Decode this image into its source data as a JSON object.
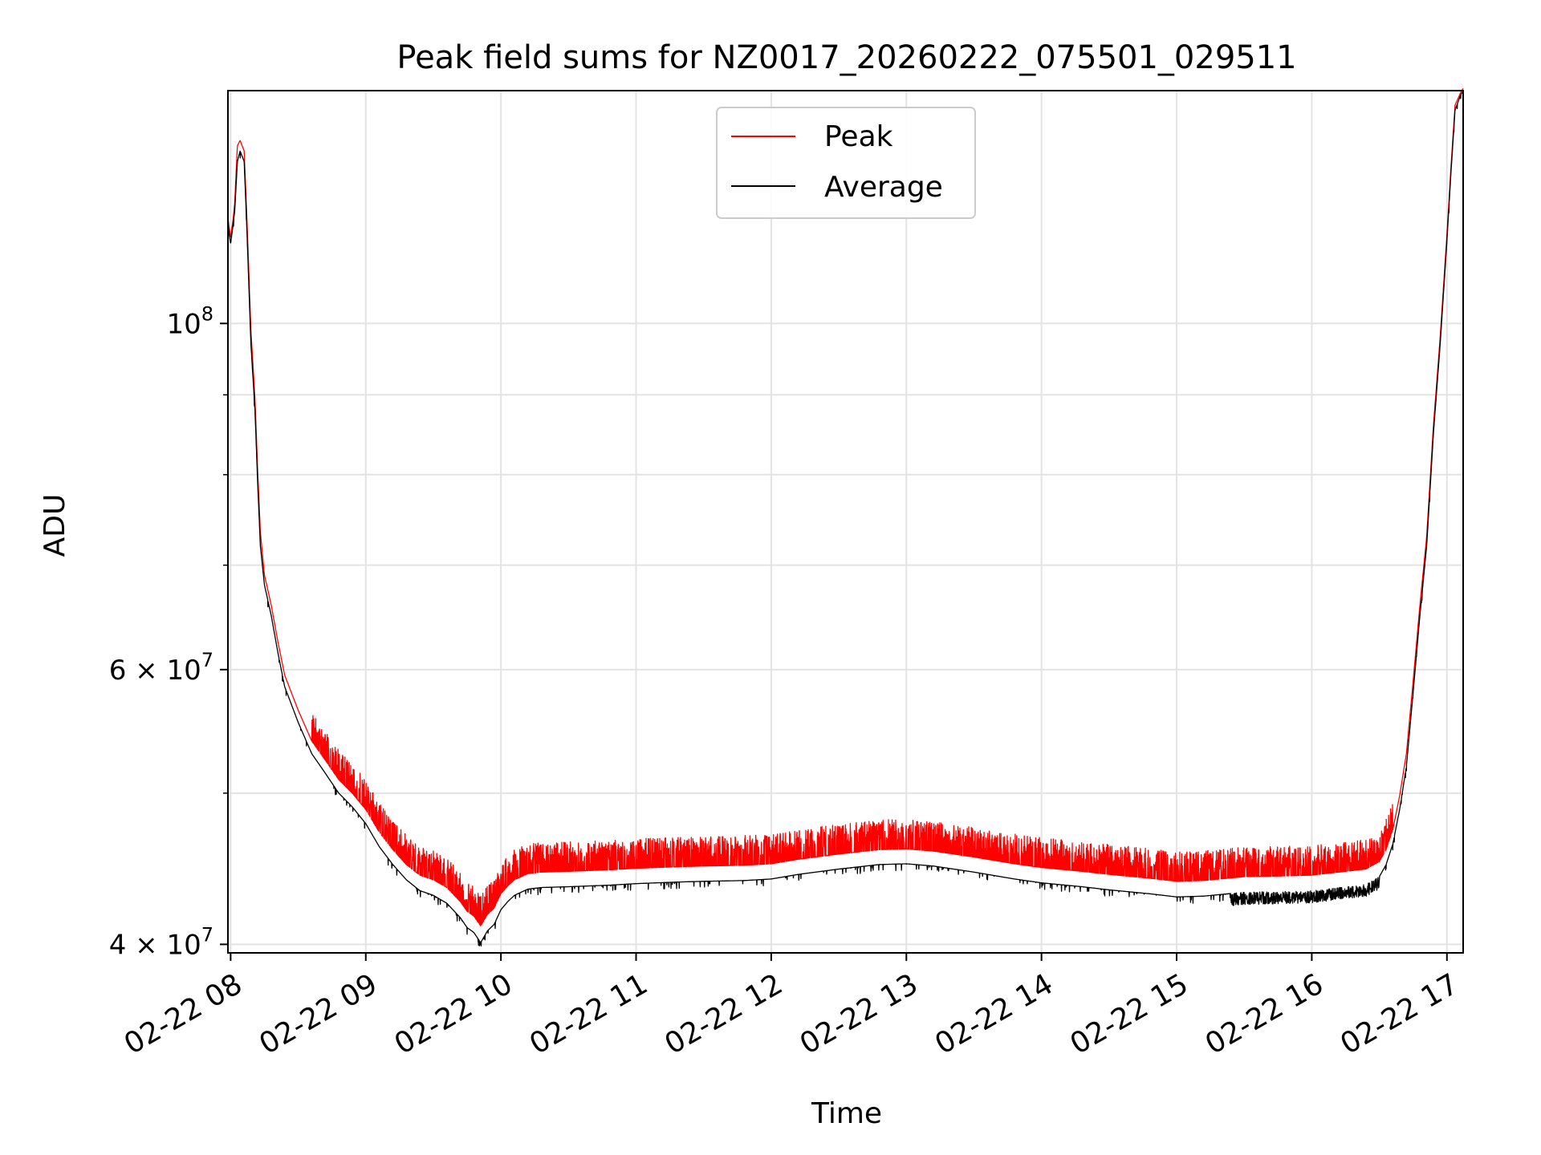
{
  "chart_data": {
    "type": "line",
    "title": "Peak field sums for NZ0017_20260222_075501_029511",
    "xlabel": "Time",
    "ylabel": "ADU",
    "yscale": "log",
    "xlim_hours": [
      7.98,
      17.12
    ],
    "ylim": [
      39500000,
      141000000
    ],
    "grid": true,
    "x_ticks": [
      {
        "hour": 8,
        "label": "02-22 08"
      },
      {
        "hour": 9,
        "label": "02-22 09"
      },
      {
        "hour": 10,
        "label": "02-22 10"
      },
      {
        "hour": 11,
        "label": "02-22 11"
      },
      {
        "hour": 12,
        "label": "02-22 12"
      },
      {
        "hour": 13,
        "label": "02-22 13"
      },
      {
        "hour": 14,
        "label": "02-22 14"
      },
      {
        "hour": 15,
        "label": "02-22 15"
      },
      {
        "hour": 16,
        "label": "02-22 16"
      },
      {
        "hour": 17,
        "label": "02-22 17"
      }
    ],
    "y_major_ticks": [
      {
        "value": 100000000,
        "mantissa": "",
        "base": "10",
        "exp": "8"
      },
      {
        "value": 60000000,
        "mantissa": "6",
        "base": "10",
        "exp": "7"
      },
      {
        "value": 40000000,
        "mantissa": "4",
        "base": "10",
        "exp": "7"
      }
    ],
    "y_minor_ticks": [
      50000000,
      70000000,
      80000000,
      90000000
    ],
    "legend": {
      "position": "top-center",
      "entries": [
        "Peak",
        "Average"
      ]
    },
    "series": [
      {
        "name": "Average",
        "color": "#000000",
        "x_hours": [
          7.98,
          7.99,
          8.0,
          8.02,
          8.03,
          8.05,
          8.07,
          8.1,
          8.12,
          8.15,
          8.18,
          8.2,
          8.22,
          8.25,
          8.3,
          8.35,
          8.4,
          8.5,
          8.6,
          8.7,
          8.8,
          8.9,
          9.0,
          9.1,
          9.2,
          9.3,
          9.4,
          9.5,
          9.6,
          9.7,
          9.75,
          9.8,
          9.85,
          9.9,
          9.95,
          10.0,
          10.05,
          10.1,
          10.2,
          10.3,
          10.5,
          10.8,
          11.0,
          11.3,
          11.5,
          11.8,
          12.0,
          12.2,
          12.5,
          12.8,
          13.0,
          13.2,
          13.5,
          13.8,
          14.0,
          14.3,
          14.5,
          14.8,
          15.0,
          15.2,
          15.5,
          15.8,
          16.0,
          16.2,
          16.4,
          16.5,
          16.55,
          16.6,
          16.65,
          16.7,
          16.75,
          16.8,
          16.85,
          16.9,
          16.95,
          17.0,
          17.03,
          17.06,
          17.1,
          17.12
        ],
        "y": [
          116000000,
          114000000,
          112500000,
          116000000,
          118000000,
          127000000,
          129000000,
          127000000,
          115000000,
          97000000,
          88000000,
          79000000,
          72000000,
          68000000,
          65000000,
          61500000,
          58500000,
          55500000,
          53000000,
          51500000,
          50000000,
          49000000,
          47800000,
          46200000,
          45000000,
          44000000,
          43300000,
          43000000,
          42500000,
          41600000,
          41000000,
          40700000,
          40100000,
          40800000,
          41200000,
          42100000,
          42600000,
          43000000,
          43400000,
          43500000,
          43550000,
          43650000,
          43750000,
          43850000,
          43900000,
          43950000,
          44050000,
          44350000,
          44700000,
          45000000,
          45050000,
          44900000,
          44500000,
          44050000,
          43800000,
          43550000,
          43350000,
          43100000,
          42900000,
          42950000,
          43200000,
          43250000,
          43300000,
          43500000,
          43700000,
          44200000,
          45000000,
          46400000,
          48800000,
          52000000,
          58000000,
          65000000,
          72000000,
          85000000,
          97000000,
          113000000,
          125000000,
          137000000,
          140000000,
          141000000
        ]
      },
      {
        "name": "Peak",
        "color": "#ff0000",
        "x_hours": [
          7.98,
          7.99,
          8.0,
          8.02,
          8.03,
          8.05,
          8.07,
          8.1,
          8.12,
          8.15,
          8.18,
          8.2,
          8.22,
          8.25,
          8.3,
          8.35,
          8.4,
          8.5,
          8.6,
          8.7,
          8.8,
          8.9,
          9.0,
          9.1,
          9.2,
          9.3,
          9.4,
          9.5,
          9.6,
          9.7,
          9.75,
          9.8,
          9.85,
          9.9,
          9.95,
          10.0,
          10.05,
          10.1,
          10.2,
          10.3,
          10.5,
          10.8,
          11.0,
          11.3,
          11.5,
          11.8,
          12.0,
          12.2,
          12.5,
          12.8,
          13.0,
          13.2,
          13.5,
          13.8,
          14.0,
          14.3,
          14.5,
          14.8,
          15.0,
          15.2,
          15.5,
          15.8,
          16.0,
          16.2,
          16.4,
          16.5,
          16.55,
          16.6,
          16.65,
          16.7,
          16.75,
          16.8,
          16.85,
          16.9,
          16.95,
          17.0,
          17.03,
          17.06,
          17.1,
          17.12
        ],
        "y": [
          117000000,
          115000000,
          113500000,
          117000000,
          119500000,
          130000000,
          131000000,
          129000000,
          117000000,
          99000000,
          89500000,
          80500000,
          73500000,
          69000000,
          66000000,
          62500000,
          59500000,
          56500000,
          54000000,
          52500000,
          51000000,
          50000000,
          48800000,
          47200000,
          46000000,
          45000000,
          44300000,
          44000000,
          43500000,
          42600000,
          42000000,
          41700000,
          41100000,
          41800000,
          42200000,
          43100000,
          43600000,
          44000000,
          44400000,
          44500000,
          44550000,
          44650000,
          44750000,
          44850000,
          44900000,
          44950000,
          45050000,
          45350000,
          45700000,
          46000000,
          46050000,
          45900000,
          45500000,
          45050000,
          44800000,
          44550000,
          44350000,
          44100000,
          43900000,
          43950000,
          44200000,
          44250000,
          44300000,
          44500000,
          44700000,
          45200000,
          46000000,
          47400000,
          49800000,
          53000000,
          59000000,
          66000000,
          73000000,
          86000000,
          98000000,
          114000000,
          126000000,
          138000000,
          140500000,
          141500000
        ]
      }
    ]
  }
}
